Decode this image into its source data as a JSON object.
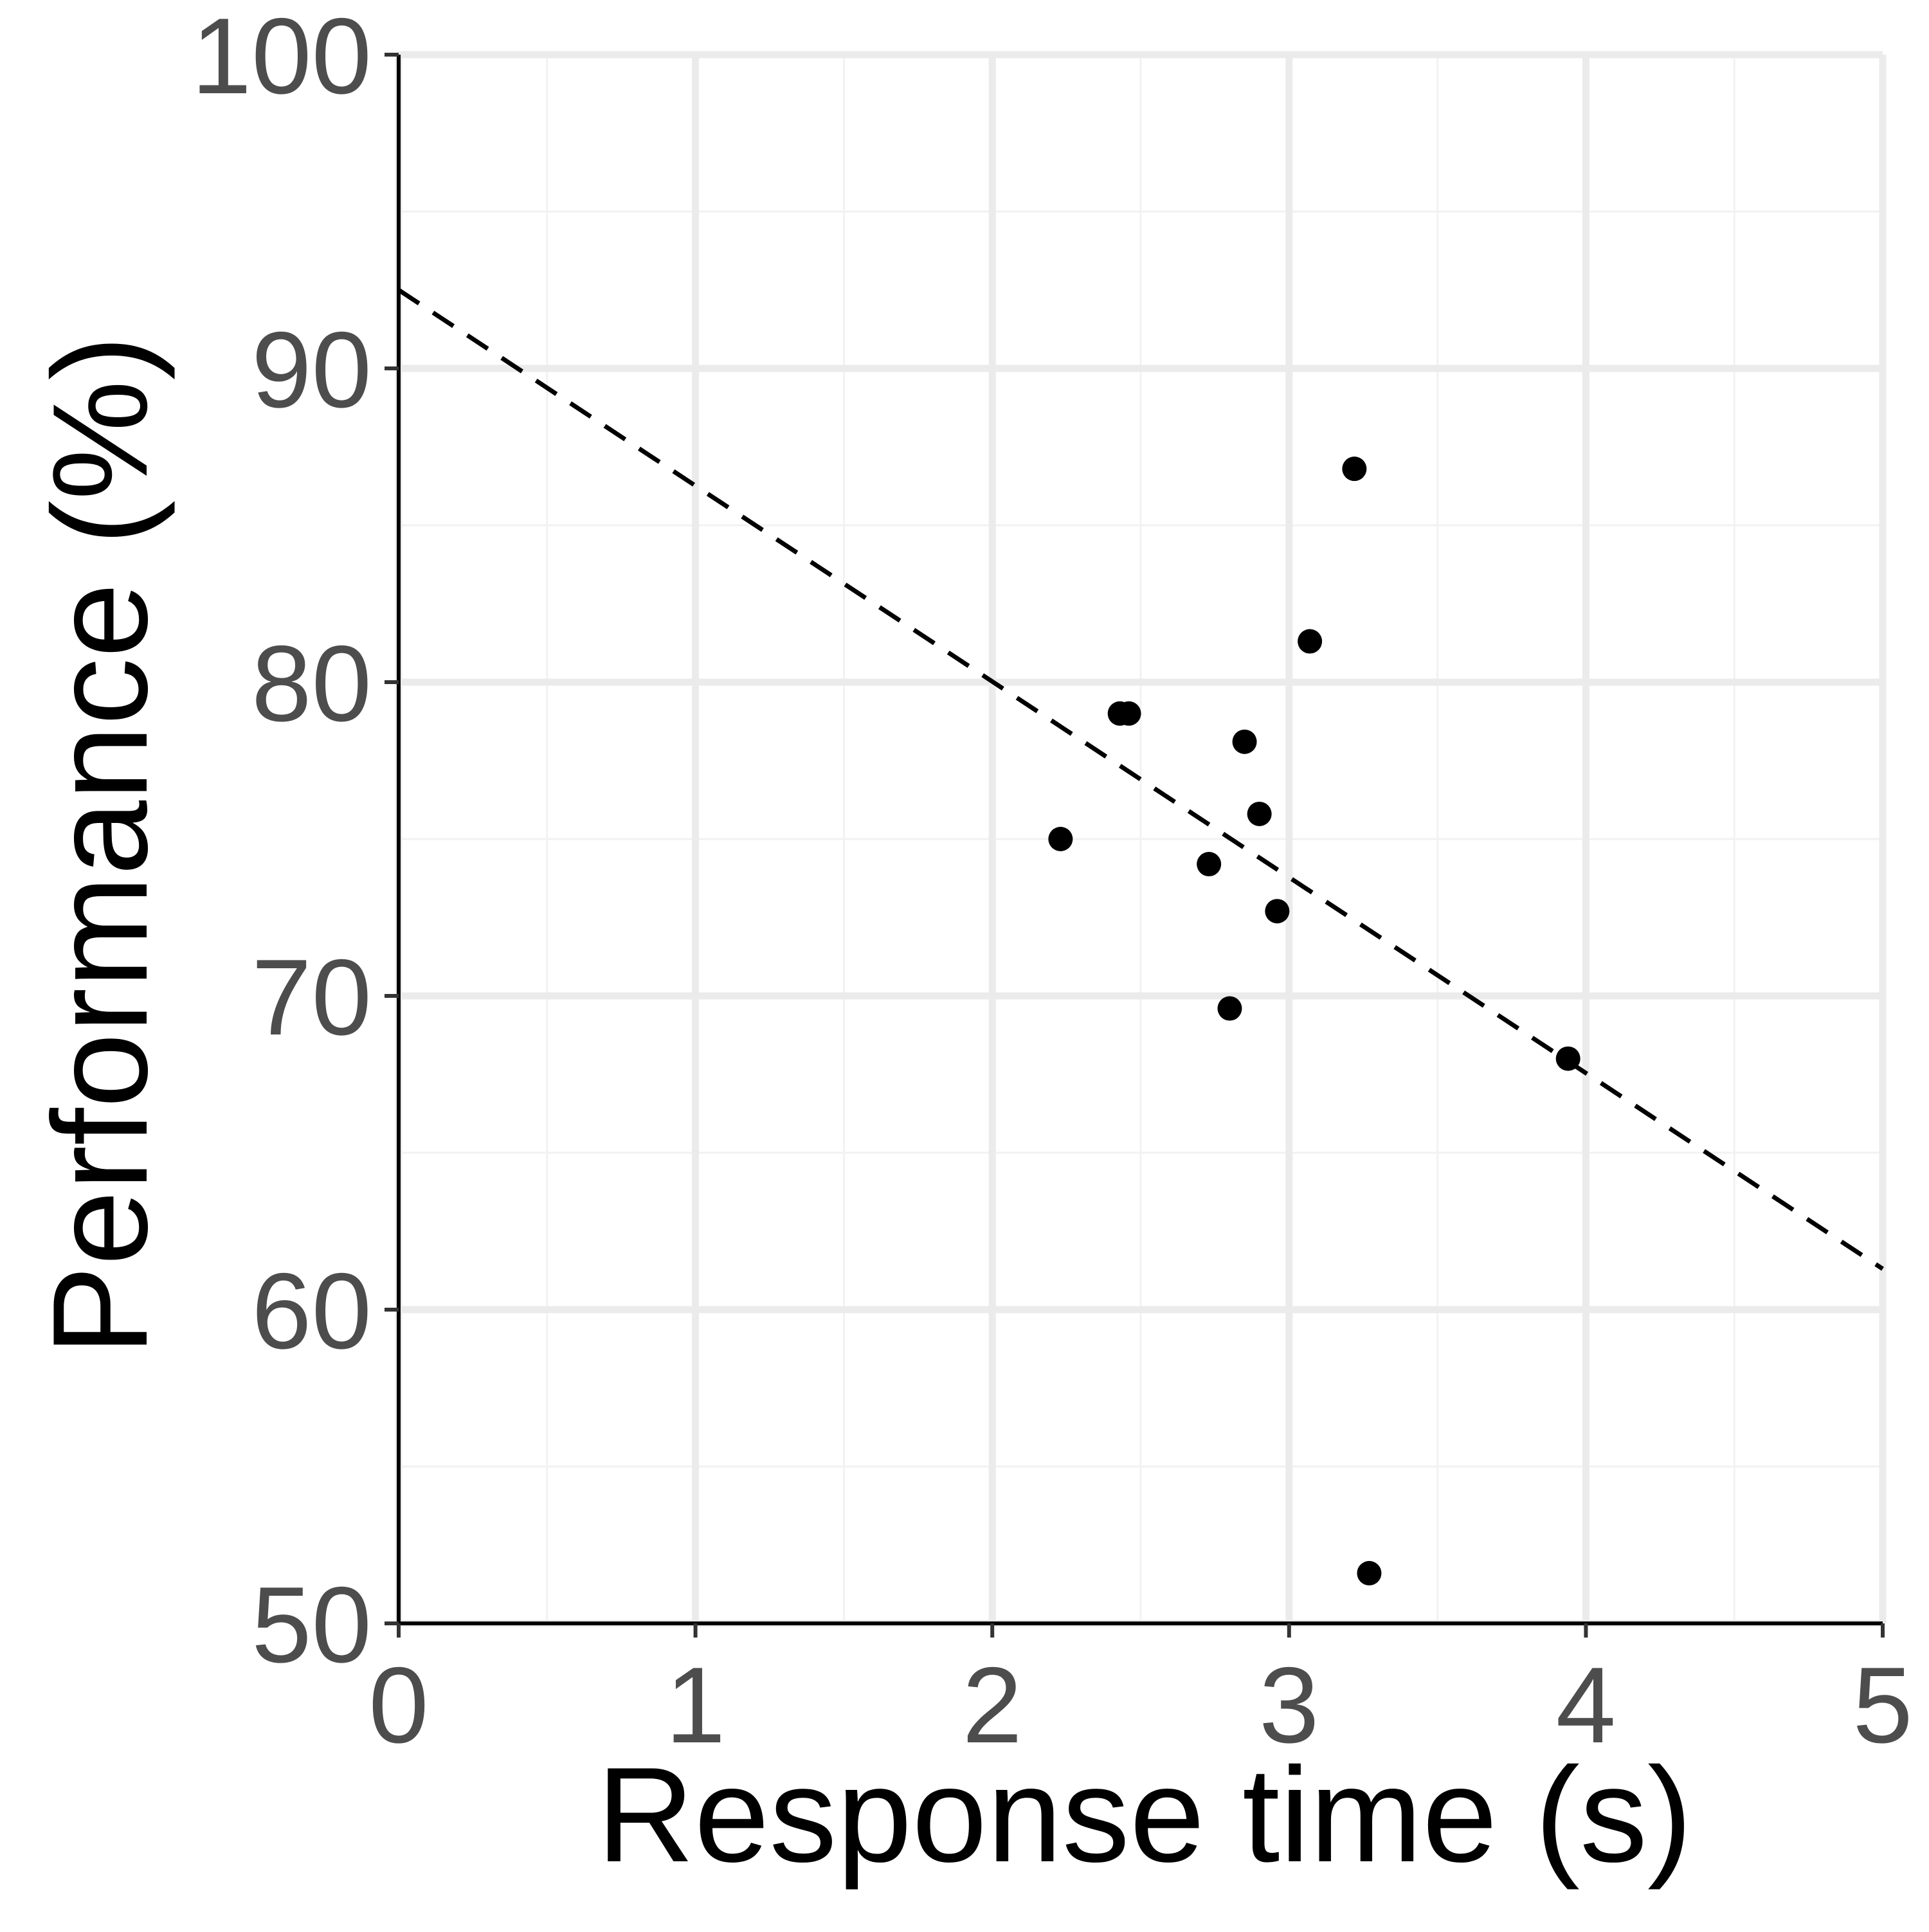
{
  "chart_data": {
    "type": "scatter",
    "title": "",
    "xlabel": "Response time (s)",
    "ylabel": "Performance (%)",
    "xlim": [
      0,
      5
    ],
    "ylim": [
      50,
      100
    ],
    "x_ticks": [
      0,
      1,
      2,
      3,
      4,
      5
    ],
    "y_ticks": [
      50,
      60,
      70,
      80,
      90,
      100
    ],
    "x_tick_labels": [
      "0",
      "1",
      "2",
      "3",
      "4",
      "5"
    ],
    "y_tick_labels": [
      "50",
      "60",
      "70",
      "80",
      "90",
      "100"
    ],
    "x_minor_ticks": [
      0.5,
      1.5,
      2.5,
      3.5,
      4.5
    ],
    "y_minor_ticks": [
      55,
      65,
      75,
      85,
      95
    ],
    "grid": true,
    "legend": "none",
    "series": [
      {
        "points": [
          {
            "x": 2.23,
            "y": 75.0
          },
          {
            "x": 2.43,
            "y": 79.0
          },
          {
            "x": 2.46,
            "y": 79.0
          },
          {
            "x": 2.73,
            "y": 74.2
          },
          {
            "x": 2.8,
            "y": 69.6
          },
          {
            "x": 2.85,
            "y": 78.1
          },
          {
            "x": 2.9,
            "y": 75.8
          },
          {
            "x": 2.96,
            "y": 72.7
          },
          {
            "x": 3.07,
            "y": 81.3
          },
          {
            "x": 3.22,
            "y": 86.8
          },
          {
            "x": 3.27,
            "y": 51.6
          },
          {
            "x": 3.94,
            "y": 68.0
          }
        ],
        "color": "#000000"
      }
    ],
    "trendline": {
      "style": "dashed",
      "color": "#000000",
      "x": [
        0,
        5
      ],
      "y": [
        92.5,
        61.3
      ]
    }
  },
  "colors": {
    "background": "#ffffff",
    "grid_major": "#ebebeb",
    "grid_minor": "#f2f2f2",
    "axis_line": "#000000",
    "tick_text": "#4d4d4d",
    "title_text": "#000000"
  }
}
